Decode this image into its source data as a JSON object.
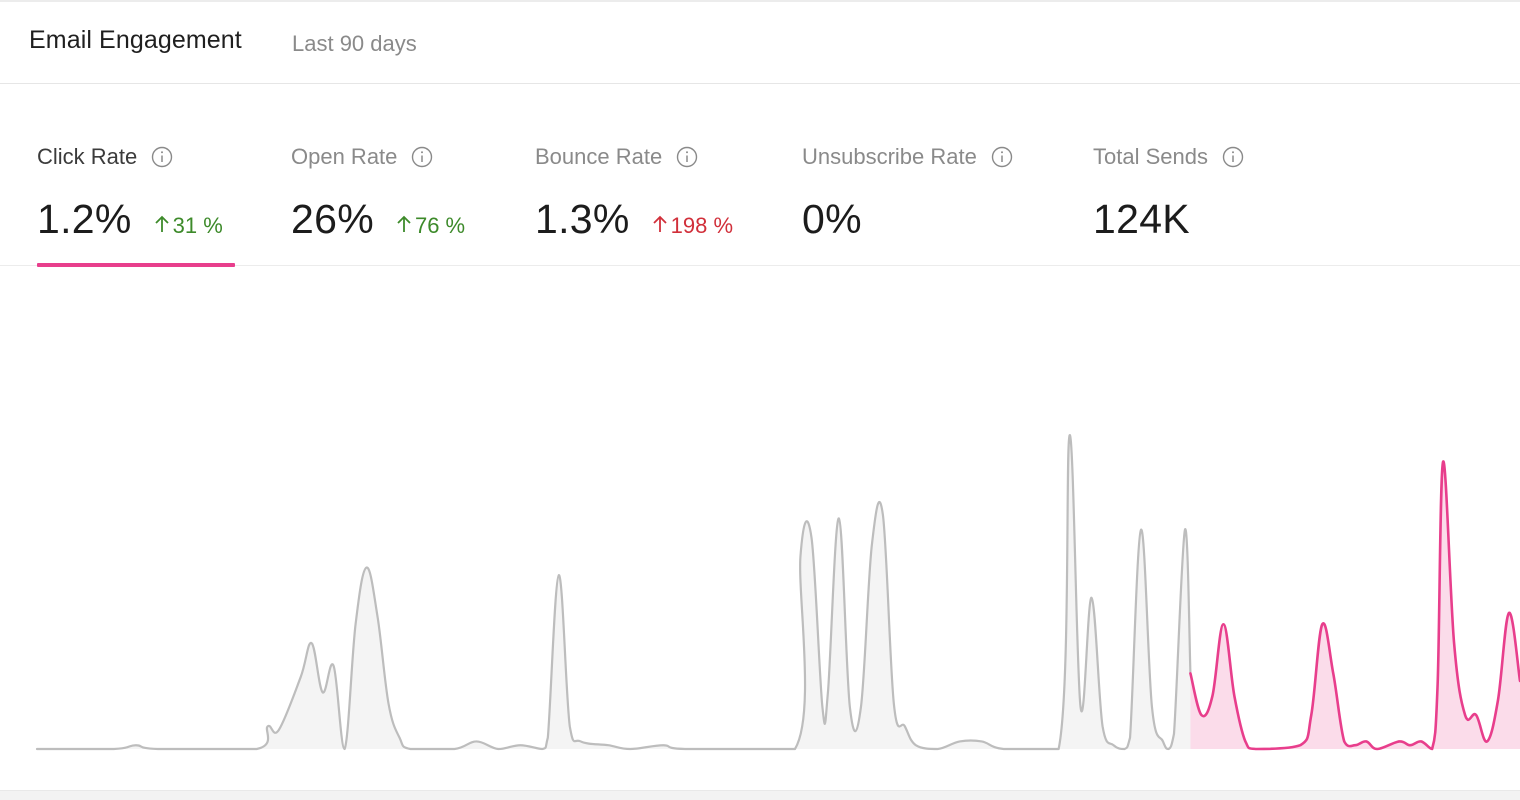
{
  "header": {
    "title": "Email Engagement",
    "range": "Last 90 days"
  },
  "metrics": [
    {
      "label": "Click Rate",
      "value": "1.2%",
      "change": "31 %",
      "trend": "up",
      "sentiment": "good",
      "active": true
    },
    {
      "label": "Open Rate",
      "value": "26%",
      "change": "76 %",
      "trend": "up",
      "sentiment": "good",
      "active": false
    },
    {
      "label": "Bounce Rate",
      "value": "1.3%",
      "change": "198 %",
      "trend": "up",
      "sentiment": "bad",
      "active": false
    },
    {
      "label": "Unsubscribe Rate",
      "value": "0%",
      "change": "",
      "trend": "",
      "sentiment": "",
      "active": false
    },
    {
      "label": "Total Sends",
      "value": "124K",
      "change": "",
      "trend": "",
      "sentiment": "",
      "active": false
    }
  ],
  "colors": {
    "accent": "#e83e8c",
    "accent_fill": "#fbdcea",
    "previous_line": "#bdbdbd",
    "previous_fill": "#f4f4f4",
    "positive": "#3d8a2a",
    "negative": "#d12f3a"
  },
  "icons": {
    "info": "info-circle-icon",
    "arrow_up": "arrow-up-icon"
  },
  "chart_data": {
    "type": "area",
    "ylim": [
      0,
      100
    ],
    "grid": false,
    "legend": "none",
    "series": [
      {
        "role": "previous-period",
        "color": "#bdbdbd",
        "points": [
          [
            0,
            0
          ],
          [
            7,
            0
          ],
          [
            9,
            1
          ],
          [
            11,
            0
          ],
          [
            20,
            0
          ],
          [
            21,
            6
          ],
          [
            22,
            5
          ],
          [
            24,
            19
          ],
          [
            25,
            28
          ],
          [
            26,
            15
          ],
          [
            27,
            22
          ],
          [
            28,
            0
          ],
          [
            29,
            33
          ],
          [
            30,
            48
          ],
          [
            31,
            35
          ],
          [
            32,
            12
          ],
          [
            33,
            3
          ],
          [
            34,
            0
          ],
          [
            38,
            0
          ],
          [
            40,
            2
          ],
          [
            42,
            0
          ],
          [
            44,
            1
          ],
          [
            46,
            0
          ],
          [
            46.5,
            3
          ],
          [
            47.5,
            46
          ],
          [
            48.5,
            6
          ],
          [
            49.5,
            2
          ],
          [
            52,
            1
          ],
          [
            54,
            0
          ],
          [
            57,
            1
          ],
          [
            59,
            0
          ],
          [
            69,
            0
          ],
          [
            69.5,
            51
          ],
          [
            70.5,
            56
          ],
          [
            71.5,
            11
          ],
          [
            72,
            15
          ],
          [
            73,
            61
          ],
          [
            74,
            11
          ],
          [
            75,
            11
          ],
          [
            76,
            54
          ],
          [
            77,
            62
          ],
          [
            78,
            12
          ],
          [
            79,
            6
          ],
          [
            80,
            1
          ],
          [
            82,
            0
          ],
          [
            84,
            2
          ],
          [
            86,
            2
          ],
          [
            88,
            0
          ],
          [
            93,
            0
          ],
          [
            94,
            83
          ],
          [
            95,
            11
          ],
          [
            96,
            40
          ],
          [
            97,
            6
          ],
          [
            98,
            1
          ],
          [
            99,
            0
          ],
          [
            99.5,
            3
          ],
          [
            100.5,
            58
          ],
          [
            101.5,
            11
          ],
          [
            102.5,
            2
          ],
          [
            103,
            0
          ],
          [
            103.5,
            4
          ],
          [
            104.5,
            58
          ],
          [
            105,
            20
          ]
        ]
      },
      {
        "role": "current-period",
        "color": "#e83e8c",
        "points": [
          [
            105,
            20
          ],
          [
            106,
            9
          ],
          [
            107,
            14
          ],
          [
            108,
            33
          ],
          [
            109,
            14
          ],
          [
            110,
            2
          ],
          [
            111,
            0
          ],
          [
            115,
            1
          ],
          [
            116,
            9
          ],
          [
            117,
            33
          ],
          [
            118,
            20
          ],
          [
            119,
            2
          ],
          [
            120,
            1
          ],
          [
            121,
            2
          ],
          [
            122,
            0
          ],
          [
            124,
            2
          ],
          [
            125,
            1
          ],
          [
            126,
            2
          ],
          [
            127,
            0
          ],
          [
            127.5,
            17
          ],
          [
            128,
            76
          ],
          [
            129,
            28
          ],
          [
            130,
            9
          ],
          [
            131,
            9
          ],
          [
            132,
            2
          ],
          [
            133,
            13
          ],
          [
            134,
            36
          ],
          [
            135,
            18
          ]
        ]
      }
    ]
  }
}
